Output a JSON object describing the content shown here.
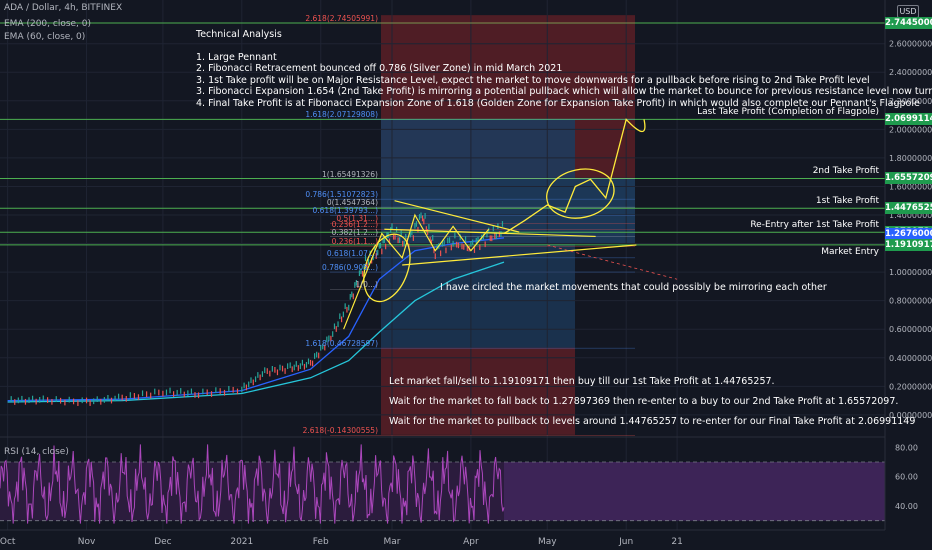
{
  "header": {
    "symbol_line": "ADA / Dollar, 4h, BITFINEX",
    "ema200": "EMA (200, close, 0)",
    "ema60": "EMA (60, close, 0)"
  },
  "currency_button": "USD",
  "notes": {
    "title": "Technical Analysis",
    "lines": [
      "1. Large Pennant",
      "2. Fibonacci Retracement bounced off 0.786 (Silver Zone) in mid March 2021",
      "3. 1st Take profit will be on Major Resistance Level, expect the market to move downwards for a pullback before rising to 2nd Take Profit level",
      "3. Fibonacci Expansion 1.654 (2nd Take Profit) is mirroring a potential pullback which will allow the market to bounce for previous resistance level now turned support.",
      "4. Final Take Profit is at Fibonacci Expansion Zone of 1.618 (Golden Zone for Expansion Take Profit) in which would also complete our Pennant's Flagpole"
    ],
    "circle_note": "I have circled the market movements that could possibly be mirroring each other",
    "plan": [
      "Let market fall/sell to 1.19109171 then buy till our 1st Take Profit at 1.44765257.",
      "Wait for the market to fall back to 1.27897369 then re-enter to a buy to our 2nd Take Profit at 1.65572097.",
      "Wait for the market to pullback to levels around 1.44765257 to re-enter for our Final Take Profit at 2.06991149"
    ]
  },
  "level_labels": [
    {
      "text": "Last Take Profit (Completion of Flagpole)",
      "value": 2.06991149
    },
    {
      "text": "2nd Take Profit",
      "value": 1.65572097
    },
    {
      "text": "1st Take Profit",
      "value": 1.44765257
    },
    {
      "text": "Re-Entry after 1st Take Profit",
      "value": 1.27897369
    },
    {
      "text": "Market Entry",
      "value": 1.19109171
    }
  ],
  "price_badges": [
    {
      "text": "2.74450000",
      "value": 2.7445,
      "color": "#1f9b4e"
    },
    {
      "text": "2.06991149",
      "value": 2.06991149,
      "color": "#1f9b4e"
    },
    {
      "text": "1.65572097",
      "value": 1.65572097,
      "color": "#1f9b4e"
    },
    {
      "text": "1.44765257",
      "value": 1.44765257,
      "color": "#1f9b4e"
    },
    {
      "text": "1.27897369",
      "value": 1.27897369,
      "color": "#1f9b4e"
    },
    {
      "text": "1.26760000",
      "value": 1.2676,
      "color": "#2962ff"
    },
    {
      "text": "1.19109171",
      "value": 1.19109171,
      "color": "#1f9b4e"
    }
  ],
  "fib_labels": [
    {
      "text": "2.618(2.74505991)",
      "value": 2.74505991,
      "color": "#ef5350"
    },
    {
      "text": "1.618(2.07129808)",
      "value": 2.07129808,
      "color": "#4f8ef5"
    },
    {
      "text": "1(1.65491326)",
      "value": 1.65491326,
      "color": "#b2b5be"
    },
    {
      "text": "0.786(1.51072823)",
      "value": 1.51072823,
      "color": "#4f8ef5"
    },
    {
      "text": "0(1.4547364)",
      "value": 1.4547364,
      "color": "#b2b5be"
    },
    {
      "text": "0.618(1.39793...)",
      "value": 1.39793,
      "color": "#4f8ef5"
    },
    {
      "text": "0.5(1.31...)",
      "value": 1.342,
      "color": "#ef5350"
    },
    {
      "text": "0.236(1.2...)",
      "value": 1.3,
      "color": "#ef5350"
    },
    {
      "text": "0.382(1.2...)",
      "value": 1.248,
      "color": "#b2b5be"
    },
    {
      "text": "0.236(1.1...)",
      "value": 1.18,
      "color": "#ef5350"
    },
    {
      "text": "0.618(1.07...)",
      "value": 1.1,
      "color": "#4f8ef5"
    },
    {
      "text": "0.786(0.905...)",
      "value": 1.0,
      "color": "#4f8ef5"
    },
    {
      "text": "1(0...)",
      "value": 0.88,
      "color": "#b2b5be"
    },
    {
      "text": "1.618(0.46728597)",
      "value": 0.46728597,
      "color": "#4f8ef5"
    },
    {
      "text": "2.618(-0.14300555)",
      "value": -0.14300555,
      "color": "#ef5350"
    }
  ],
  "chart_data": [
    {
      "type": "line",
      "title": "ADA / Dollar, 4h, BITFINEX",
      "x_ticks": [
        "Oct",
        "Nov",
        "Dec",
        "2021",
        "Feb",
        "Mar",
        "Apr",
        "May",
        "Jun",
        "21"
      ],
      "y_ticks": [
        "2.60000000",
        "2.40000000",
        "2.20000000",
        "2.00000000",
        "1.80000000",
        "1.60000000",
        "1.40000000",
        "1.20000000",
        "1.00000000",
        "0.80000000",
        "0.60000000",
        "0.40000000",
        "0.20000000",
        "0.00000000"
      ],
      "ylim": [
        -0.12,
        2.85
      ],
      "horizontal_levels": [
        2.7445,
        2.06991149,
        1.65572097,
        1.44765257,
        1.27897369,
        1.19109171
      ],
      "price": {
        "x": [
          "2020-10-01",
          "2020-10-15",
          "2020-11-01",
          "2020-11-15",
          "2020-12-01",
          "2020-12-15",
          "2021-01-01",
          "2021-01-10",
          "2021-01-20",
          "2021-01-28",
          "2021-02-05",
          "2021-02-12",
          "2021-02-18",
          "2021-02-24",
          "2021-03-01",
          "2021-03-07",
          "2021-03-13",
          "2021-03-18",
          "2021-03-25",
          "2021-04-01",
          "2021-04-08",
          "2021-04-14"
        ],
        "y": [
          0.1,
          0.105,
          0.09,
          0.12,
          0.16,
          0.15,
          0.18,
          0.3,
          0.33,
          0.36,
          0.55,
          0.78,
          1.05,
          1.16,
          1.28,
          1.2,
          1.4,
          1.15,
          1.22,
          1.18,
          1.25,
          1.3
        ]
      },
      "ema200": {
        "x": [
          "2020-10-01",
          "2020-11-15",
          "2021-01-01",
          "2021-01-28",
          "2021-02-12",
          "2021-02-24",
          "2021-03-10",
          "2021-03-25",
          "2021-04-14"
        ],
        "y": [
          0.09,
          0.1,
          0.15,
          0.26,
          0.38,
          0.58,
          0.8,
          0.95,
          1.07
        ]
      },
      "ema60": {
        "x": [
          "2020-10-01",
          "2020-11-15",
          "2021-01-01",
          "2021-01-28",
          "2021-02-12",
          "2021-02-24",
          "2021-03-10",
          "2021-03-25",
          "2021-04-14"
        ],
        "y": [
          0.1,
          0.11,
          0.17,
          0.32,
          0.55,
          0.95,
          1.15,
          1.2,
          1.24
        ]
      },
      "projection": {
        "x": [
          "2021-04-14",
          "2021-04-22",
          "2021-05-01",
          "2021-05-08",
          "2021-05-12",
          "2021-05-18",
          "2021-05-24",
          "2021-06-01"
        ],
        "y": [
          1.27,
          1.36,
          1.47,
          1.42,
          1.6,
          1.65,
          1.52,
          2.06991149
        ]
      }
    },
    {
      "type": "line",
      "title": "RSI (14, close)",
      "y_ticks": [
        "80.00",
        "60.00",
        "40.00"
      ],
      "ylim": [
        25,
        85
      ],
      "bands": [
        30,
        70
      ]
    }
  ]
}
